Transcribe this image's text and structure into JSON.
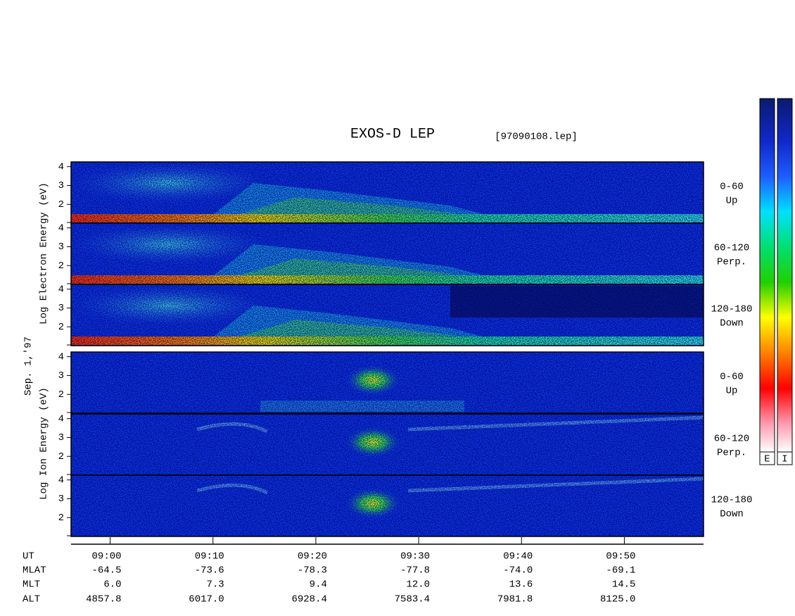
{
  "chart_data": {
    "type": "spectrogram",
    "title": "EXOS-D LEP",
    "subtitle": "[97090108.lep]",
    "date_label": "Sep. 1,'97",
    "groups": [
      {
        "ylabel": "Log  Electron  Energy (eV)",
        "species": "electron",
        "panels": [
          {
            "angle": "0-60",
            "direction": "Up"
          },
          {
            "angle": "60-120",
            "direction": "Perp."
          },
          {
            "angle": "120-180",
            "direction": "Down"
          }
        ]
      },
      {
        "ylabel": "Log  Ion  Energy (eV)",
        "species": "ion",
        "panels": [
          {
            "angle": "0-60",
            "direction": "Up"
          },
          {
            "angle": "60-120",
            "direction": "Perp."
          },
          {
            "angle": "120-180",
            "direction": "Down"
          }
        ]
      }
    ],
    "ylim": [
      1,
      4.25
    ],
    "yticks": [
      2,
      3,
      4
    ],
    "x_label": "UT",
    "xlim": [
      536.2,
      597.7
    ],
    "xticks": [
      {
        "value": 540,
        "label": "09:00"
      },
      {
        "value": 550,
        "label": "09:10"
      },
      {
        "value": 560,
        "label": "09:20"
      },
      {
        "value": 570,
        "label": "09:30"
      },
      {
        "value": 580,
        "label": "09:40"
      },
      {
        "value": 590,
        "label": "09:50"
      }
    ],
    "orbit": [
      {
        "name": "MLAT",
        "values": [
          "-64.5",
          "-73.6",
          "-78.3",
          "-77.8",
          "-74.0",
          "-69.1"
        ]
      },
      {
        "name": "MLT",
        "values": [
          "6.0",
          "7.3",
          "9.4",
          "12.0",
          "13.6",
          "14.5"
        ]
      },
      {
        "name": "ALT",
        "values": [
          "4857.8",
          "6017.0",
          "6928.4",
          "7583.4",
          "7981.8",
          "8125.0"
        ]
      }
    ],
    "colorbar_labels": [
      "E",
      "I"
    ]
  }
}
